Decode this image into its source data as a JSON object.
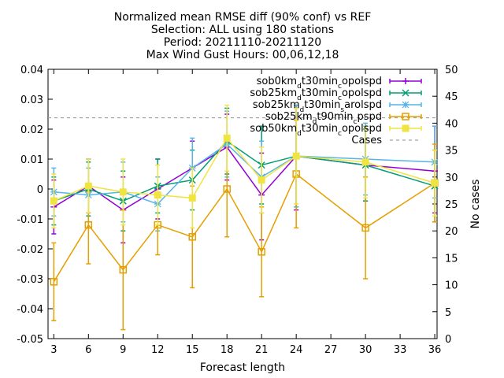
{
  "chart_data": {
    "type": "line",
    "title_lines": [
      "Normalized mean RMSE diff (90% conf) vs REF",
      "Selection: ALL using   180 stations",
      "Period: 20211110-20211120",
      "Max Wind Gust   Hours: 00,06,12,18"
    ],
    "xlabel": "Forecast length",
    "ylabel_right": "No cases",
    "xlim": [
      2.5,
      36.2
    ],
    "ylim": [
      -0.05,
      0.04
    ],
    "y2lim": [
      0,
      50
    ],
    "xticks": [
      3,
      6,
      9,
      12,
      15,
      18,
      21,
      24,
      27,
      30,
      33,
      36
    ],
    "yticks": [
      -0.05,
      -0.04,
      -0.03,
      -0.02,
      -0.01,
      0,
      0.01,
      0.02,
      0.03,
      0.04
    ],
    "yticks_labels": [
      "-0.05",
      "-0.04",
      "-0.03",
      "-0.02",
      "-0.01",
      "0",
      "0.01",
      "0.02",
      "0.03",
      "0.04"
    ],
    "y2ticks": [
      0,
      5,
      10,
      15,
      20,
      25,
      30,
      35,
      40,
      45,
      50
    ],
    "x": [
      3,
      6,
      9,
      12,
      15,
      18,
      21,
      24,
      30,
      36
    ],
    "legend_position": "top-right",
    "series": [
      {
        "name": "sob0km_t30min_opolspd",
        "name_parts": [
          [
            "sob0km",
            "base"
          ],
          [
            "d",
            "sub"
          ],
          [
            "t30min",
            "base"
          ],
          [
            "c",
            "sub"
          ],
          [
            "opolspd",
            "base"
          ]
        ],
        "color": "#9400d3",
        "marker": "plus",
        "values": [
          -0.006,
          0.001,
          -0.007,
          0.0,
          0.007,
          0.014,
          -0.002,
          0.011,
          0.008,
          0.006
        ],
        "err_low": [
          -0.015,
          -0.008,
          -0.018,
          -0.01,
          -0.003,
          0.003,
          -0.017,
          -0.007,
          -0.004,
          -0.008
        ],
        "err_high": [
          0.003,
          0.01,
          0.004,
          0.01,
          0.016,
          0.025,
          0.012,
          0.027,
          0.021,
          0.021
        ]
      },
      {
        "name": "sob25km_t30min_opolspd",
        "name_parts": [
          [
            "sob25km",
            "base"
          ],
          [
            "d",
            "sub"
          ],
          [
            "t30min",
            "base"
          ],
          [
            "c",
            "sub"
          ],
          [
            "opolspd",
            "base"
          ]
        ],
        "color": "#009e73",
        "marker": "x",
        "values": [
          -0.004,
          0.0,
          -0.004,
          0.001,
          0.003,
          0.016,
          0.008,
          0.011,
          0.008,
          0.001
        ],
        "err_low": [
          -0.012,
          -0.009,
          -0.014,
          -0.008,
          -0.007,
          0.005,
          -0.005,
          -0.006,
          -0.004,
          -0.011
        ],
        "err_high": [
          0.004,
          0.009,
          0.006,
          0.01,
          0.013,
          0.027,
          0.021,
          0.028,
          0.02,
          0.013
        ]
      },
      {
        "name": "sob25km_t30min_arolspd",
        "name_parts": [
          [
            "sob25km",
            "base"
          ],
          [
            "d",
            "sub"
          ],
          [
            "t30min",
            "base"
          ],
          [
            "s",
            "sub"
          ],
          [
            "arolspd",
            "base"
          ]
        ],
        "color": "#56b4e9",
        "marker": "star",
        "values": [
          -0.001,
          -0.002,
          -0.001,
          -0.005,
          0.007,
          0.015,
          0.004,
          0.011,
          0.01,
          0.009
        ],
        "err_low": [
          -0.009,
          -0.011,
          -0.011,
          -0.014,
          -0.003,
          0.004,
          -0.008,
          -0.006,
          -0.002,
          -0.003
        ],
        "err_high": [
          0.007,
          0.007,
          0.009,
          0.004,
          0.017,
          0.026,
          0.016,
          0.028,
          0.022,
          0.021
        ]
      },
      {
        "name": "sob25km_t90min_pspd",
        "name_parts": [
          [
            "sob25km",
            "base"
          ],
          [
            "d",
            "sub"
          ],
          [
            "t90min",
            "base"
          ],
          [
            "c",
            "sub"
          ],
          [
            "pspd",
            "base"
          ]
        ],
        "color": "#e69f00",
        "marker": "square",
        "values": [
          -0.031,
          -0.012,
          -0.027,
          -0.012,
          -0.016,
          0.0,
          -0.021,
          0.005,
          -0.013,
          0.002
        ],
        "err_low": [
          -0.044,
          -0.025,
          -0.047,
          -0.022,
          -0.033,
          -0.016,
          -0.036,
          -0.013,
          -0.03,
          -0.011
        ],
        "err_high": [
          -0.018,
          -0.001,
          -0.007,
          -0.002,
          0.001,
          0.016,
          -0.006,
          0.023,
          0.004,
          0.015
        ]
      },
      {
        "name": "sob50km_t30min_opolspd",
        "name_parts": [
          [
            "sob50km",
            "base"
          ],
          [
            "d",
            "sub"
          ],
          [
            "t30min",
            "base"
          ],
          [
            "c",
            "sub"
          ],
          [
            "opolspd",
            "base"
          ]
        ],
        "color": "#f0e442",
        "marker": "square-filled",
        "values": [
          -0.004,
          0.001,
          -0.001,
          -0.002,
          -0.003,
          0.017,
          0.003,
          0.011,
          0.009,
          0.002
        ],
        "err_low": [
          -0.013,
          -0.008,
          -0.012,
          -0.012,
          -0.013,
          0.006,
          -0.008,
          -0.005,
          -0.003,
          -0.009
        ],
        "err_high": [
          0.005,
          0.01,
          0.01,
          0.008,
          0.007,
          0.028,
          0.014,
          0.027,
          0.021,
          0.013
        ]
      }
    ],
    "cases": {
      "name": "Cases",
      "axis": "right",
      "color": "#a0a0a0",
      "style": "dashed",
      "value": 41
    }
  }
}
